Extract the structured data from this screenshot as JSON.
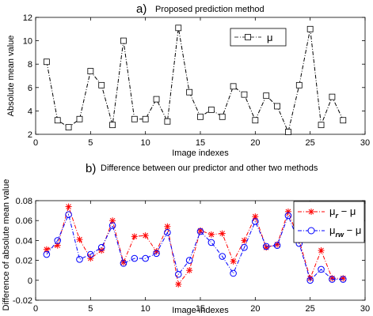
{
  "chart_data": [
    {
      "type": "line",
      "title_letter": "a)",
      "title": "Proposed prediction method",
      "xlabel": "Image indexes",
      "ylabel": "Absolute mean value",
      "xlim": [
        0,
        30
      ],
      "ylim": [
        2,
        12
      ],
      "xticks": [
        "0",
        "5",
        "10",
        "15",
        "20",
        "25",
        "30"
      ],
      "yticks": [
        "2",
        "4",
        "6",
        "8",
        "10",
        "12"
      ],
      "x": [
        1,
        2,
        3,
        4,
        5,
        6,
        7,
        8,
        9,
        10,
        11,
        12,
        13,
        14,
        15,
        16,
        17,
        18,
        19,
        20,
        21,
        22,
        23,
        24,
        25,
        26,
        27,
        28
      ],
      "series": [
        {
          "name": "μ",
          "color": "#000000",
          "marker": "square",
          "line_style": "dash-dot",
          "values": [
            8.2,
            3.2,
            2.6,
            3.3,
            7.4,
            6.2,
            2.8,
            10.0,
            3.3,
            3.3,
            5.0,
            3.1,
            11.1,
            5.6,
            3.5,
            4.1,
            3.5,
            6.1,
            5.4,
            3.2,
            5.3,
            4.4,
            2.2,
            6.2,
            11.0,
            2.8,
            5.2,
            3.2
          ]
        }
      ],
      "legend": {
        "position": "top-right",
        "label": "μ"
      }
    },
    {
      "type": "line",
      "title_letter": "b)",
      "title": "Difference between our predictor and other two methods",
      "xlabel": "Image indexes",
      "ylabel": "Difference of absolute mean value",
      "xlim": [
        0,
        30
      ],
      "ylim": [
        -0.02,
        0.08
      ],
      "xticks": [
        "0",
        "5",
        "10",
        "15",
        "20",
        "25",
        "30"
      ],
      "yticks": [
        "-0.02",
        "0",
        "0.02",
        "0.04",
        "0.06",
        "0.08"
      ],
      "x": [
        1,
        2,
        3,
        4,
        5,
        6,
        7,
        8,
        9,
        10,
        11,
        12,
        13,
        14,
        15,
        16,
        17,
        18,
        19,
        20,
        21,
        22,
        23,
        24,
        25,
        26,
        27,
        28
      ],
      "series": [
        {
          "name": "μr − μ",
          "label_main": "μ",
          "label_sub": "r",
          "label_tail": " − μ",
          "color": "#ff0000",
          "marker": "star",
          "line_style": "dash-dot",
          "values": [
            0.031,
            0.035,
            0.074,
            0.041,
            0.022,
            0.03,
            0.06,
            0.018,
            0.044,
            0.045,
            0.029,
            0.054,
            -0.004,
            0.01,
            0.05,
            0.046,
            0.047,
            0.019,
            0.04,
            0.064,
            0.033,
            0.036,
            0.069,
            0.04,
            0.002,
            0.03,
            0.002,
            0.002
          ]
        },
        {
          "name": "μrw − μ",
          "label_main": "μ",
          "label_sub": "rw",
          "label_tail": " − μ",
          "color": "#0000ff",
          "marker": "circle",
          "line_style": "dash-dot",
          "values": [
            0.026,
            0.04,
            0.066,
            0.021,
            0.026,
            0.033,
            0.055,
            0.017,
            0.022,
            0.022,
            0.027,
            0.048,
            0.006,
            0.02,
            0.049,
            0.038,
            0.024,
            0.007,
            0.033,
            0.059,
            0.034,
            0.035,
            0.065,
            0.037,
            0.0,
            0.011,
            0.001,
            0.001
          ]
        }
      ],
      "legend": {
        "position": "top-right"
      }
    }
  ]
}
